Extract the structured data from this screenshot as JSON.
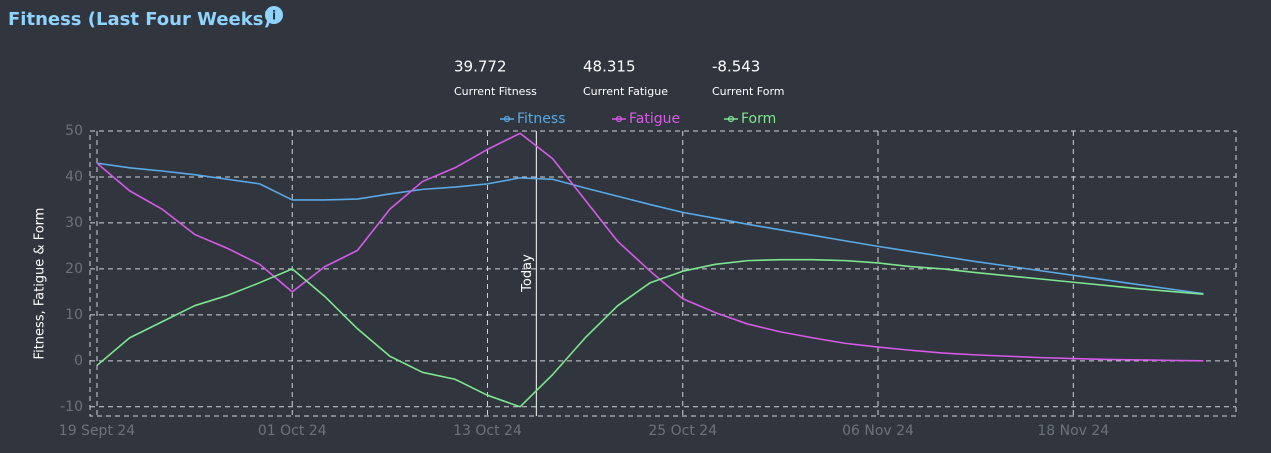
{
  "chart_data": {
    "type": "line",
    "title": "Fitness (Last Four Weeks)",
    "stats": [
      {
        "value": 39.772,
        "label": "Current Fitness"
      },
      {
        "value": 48.315,
        "label": "Current Fatigue"
      },
      {
        "value": -8.543,
        "label": "Current Form"
      }
    ],
    "y_label": "Fitness, Fatigue & Form",
    "x": [
      "2024-09-19",
      "2024-09-21",
      "2024-09-23",
      "2024-09-25",
      "2024-09-27",
      "2024-09-29",
      "2024-10-01",
      "2024-10-03",
      "2024-10-05",
      "2024-10-07",
      "2024-10-09",
      "2024-10-11",
      "2024-10-13",
      "2024-10-15",
      "2024-10-17",
      "2024-10-19",
      "2024-10-21",
      "2024-10-23",
      "2024-10-25",
      "2024-10-27",
      "2024-10-29",
      "2024-10-31",
      "2024-11-02",
      "2024-11-04",
      "2024-11-06",
      "2024-11-08",
      "2024-11-10",
      "2024-11-12",
      "2024-11-14",
      "2024-11-16",
      "2024-11-18",
      "2024-11-20",
      "2024-11-22",
      "2024-11-24",
      "2024-11-26"
    ],
    "series": [
      {
        "name": "Fitness",
        "color": "#5aa9e6",
        "values": [
          43,
          42,
          41.3,
          40.5,
          39.5,
          38.5,
          35,
          35,
          35.2,
          36.3,
          37.3,
          37.8,
          38.5,
          39.8,
          39.5,
          37.6,
          35.8,
          34,
          32.3,
          31,
          29.7,
          28.5,
          27.3,
          26.1,
          24.9,
          23.8,
          22.7,
          21.6,
          20.6,
          19.6,
          18.6,
          17.6,
          16.6,
          15.6,
          14.6
        ]
      },
      {
        "name": "Fatigue",
        "color": "#d65be8",
        "values": [
          43,
          37,
          33,
          27.5,
          24.5,
          21,
          15,
          20.5,
          24,
          33,
          39,
          42,
          46,
          49.5,
          44,
          35,
          26,
          19.5,
          13.5,
          10.5,
          8,
          6.3,
          5,
          3.8,
          3,
          2.3,
          1.7,
          1.3,
          1,
          0.7,
          0.5,
          0.3,
          0.2,
          0.1,
          0
        ]
      },
      {
        "name": "Form",
        "color": "#7ee68f",
        "values": [
          -1,
          5,
          8.5,
          12,
          14.2,
          17,
          20,
          14,
          7,
          1,
          -2.5,
          -4,
          -7.5,
          -10,
          -3,
          5,
          12,
          17,
          19.5,
          21,
          21.8,
          22,
          22,
          21.8,
          21.3,
          20.5,
          20,
          19.2,
          18.5,
          17.8,
          17.1,
          16.4,
          15.7,
          15.1,
          14.5
        ]
      }
    ],
    "xlim": [
      "2024-09-19",
      "2024-11-28"
    ],
    "xticks": [
      {
        "value": "2024-09-19",
        "label": "19 Sept 24"
      },
      {
        "value": "2024-10-01",
        "label": "01 Oct 24"
      },
      {
        "value": "2024-10-13",
        "label": "13 Oct 24"
      },
      {
        "value": "2024-10-25",
        "label": "25 Oct 24"
      },
      {
        "value": "2024-11-06",
        "label": "06 Nov 24"
      },
      {
        "value": "2024-11-18",
        "label": "18 Nov 24"
      }
    ],
    "ylim": [
      -12,
      50
    ],
    "yticks": [
      -10,
      0,
      10,
      20,
      30,
      40,
      50
    ],
    "grid": true,
    "annotation": {
      "x": "2024-10-16",
      "label": "Today"
    }
  }
}
